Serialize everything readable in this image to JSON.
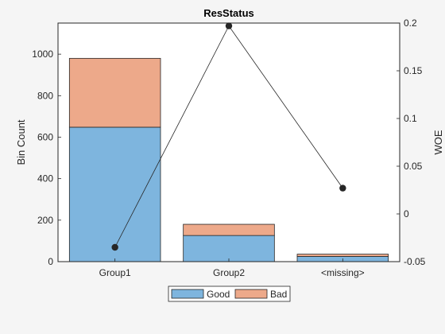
{
  "chart_data": {
    "type": "bar",
    "title": "ResStatus",
    "categories": [
      "Group1",
      "Group2",
      "<missing>"
    ],
    "stacked": true,
    "series": [
      {
        "name": "Good",
        "values": [
          648,
          126,
          25
        ],
        "color": "#7EB5DE"
      },
      {
        "name": "Bad",
        "values": [
          332,
          54,
          11
        ],
        "color": "#EDA98A"
      }
    ],
    "woe": {
      "values": [
        -0.035,
        0.197,
        0.027
      ],
      "color": "#262626"
    },
    "ylabel_left": "Bin Count",
    "ylabel_right": "WOE",
    "ylim_left": [
      0,
      1150
    ],
    "ylim_right": [
      -0.05,
      0.2
    ],
    "yticks_left": [
      0,
      200,
      400,
      600,
      800,
      1000
    ],
    "yticks_right": [
      {
        "value": -0.05,
        "label": "-0.05"
      },
      {
        "value": 0,
        "label": "0"
      },
      {
        "value": 0.05,
        "label": "0.05"
      },
      {
        "value": 0.1,
        "label": "0.1"
      },
      {
        "value": 0.15,
        "label": "0.15"
      },
      {
        "value": 0.2,
        "label": "0.2"
      }
    ],
    "grid": false,
    "legend_position": "bottom-center"
  }
}
